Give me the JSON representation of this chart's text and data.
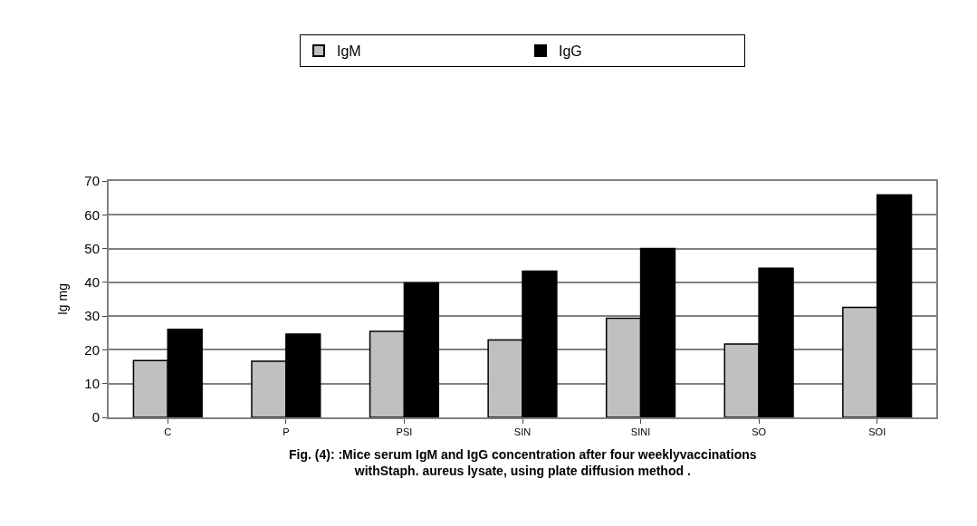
{
  "chart_data": {
    "type": "bar",
    "ylabel": "Ig mg",
    "categories": [
      "C",
      "P",
      "PSI",
      "SIN",
      "SINI",
      "SO",
      "SOI"
    ],
    "series": [
      {
        "name": "IgM",
        "color": "#c0c0c0",
        "values": [
          16.8,
          16.6,
          25.5,
          22.9,
          29.4,
          21.7,
          32.6
        ]
      },
      {
        "name": "IgG",
        "color": "#000000",
        "values": [
          26.1,
          24.7,
          39.8,
          43.3,
          50.0,
          44.2,
          65.9
        ]
      }
    ],
    "ylim": [
      0,
      70
    ],
    "yticks": [
      0,
      10,
      20,
      30,
      40,
      50,
      60,
      70
    ],
    "grid": "y",
    "legend": "top",
    "annotations": [
      "Fig. (4): :Mice serum IgM and IgG concentration after four weeklyvaccinations\nwithStaph. aureus lysate, using plate diffusion method ."
    ]
  }
}
